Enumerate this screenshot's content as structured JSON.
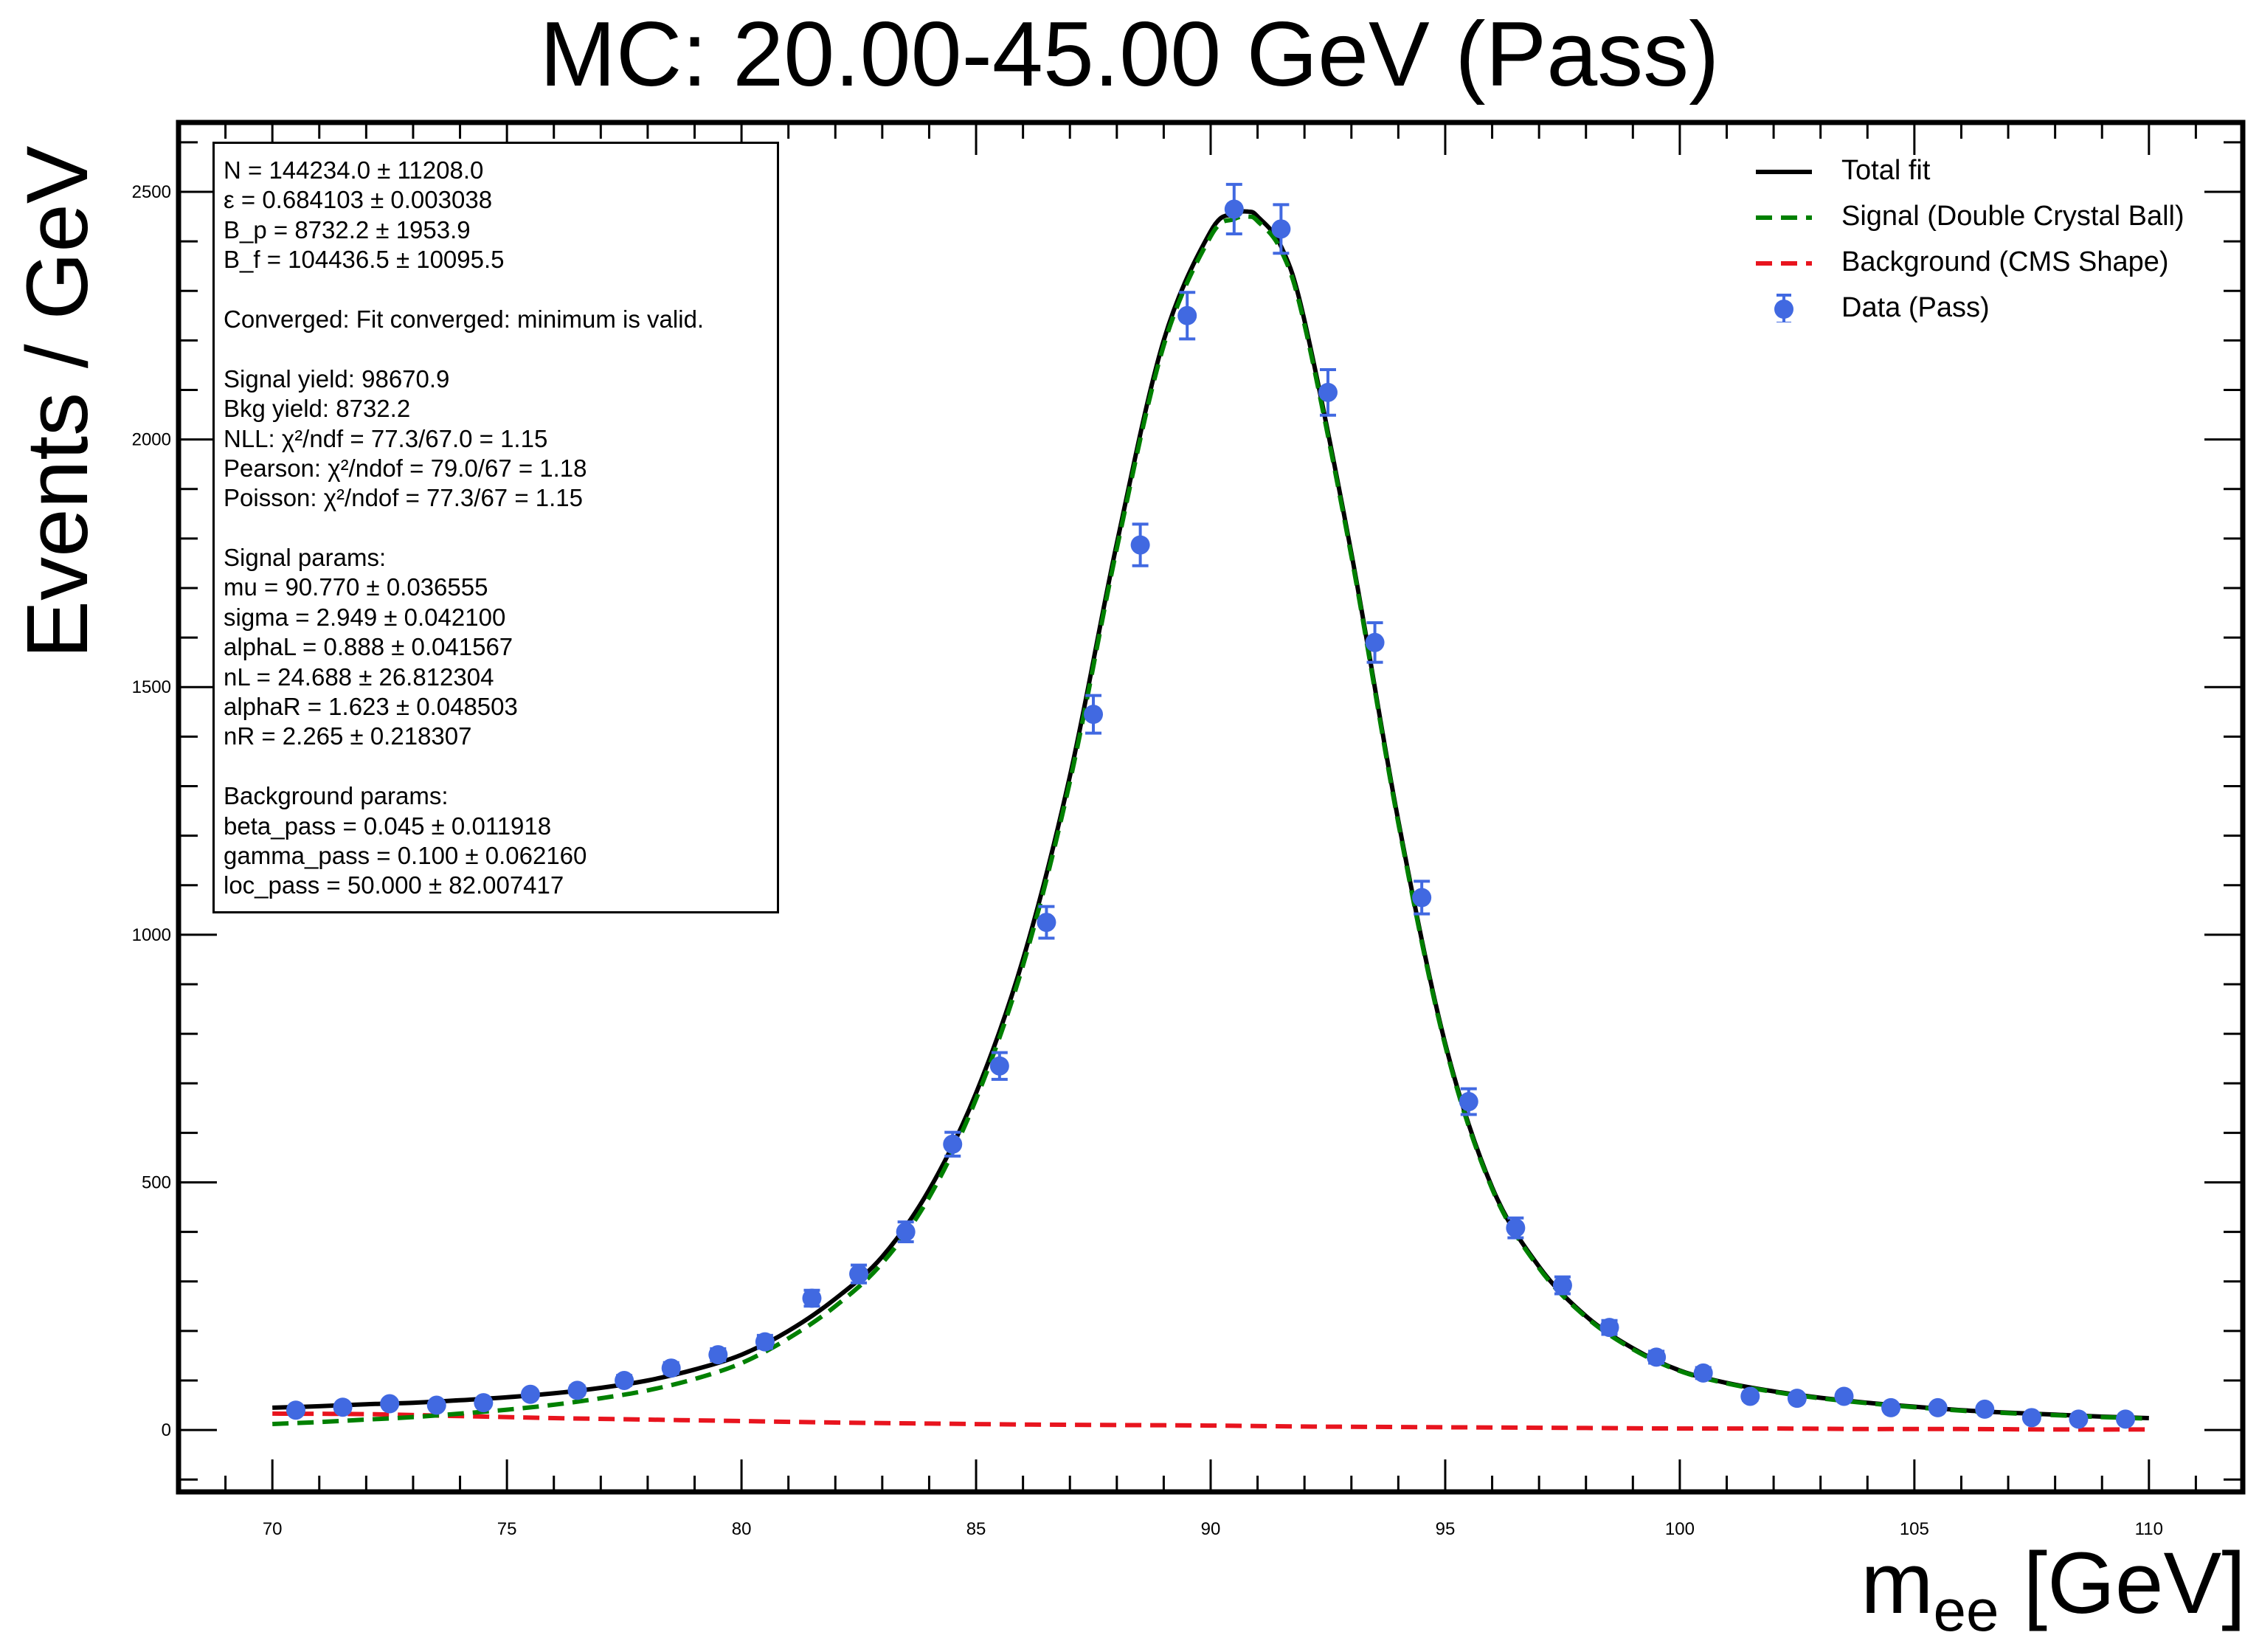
{
  "title": "MC: 20.00-45.00 GeV (Pass)",
  "ylabel": "Events / GeV",
  "xlabel_main": "m",
  "xlabel_sub": "ee",
  "xlabel_unit": " [GeV]",
  "stats_lines": [
    "N = 144234.0 ± 11208.0",
    "ε = 0.684103 ± 0.003038",
    "B_p = 8732.2 ± 1953.9",
    "B_f = 104436.5 ± 10095.5",
    "",
    "Converged: Fit converged: minimum is valid.",
    "",
    "Signal yield: 98670.9",
    "Bkg yield: 8732.2",
    "NLL: χ²/ndf = 77.3/67.0 = 1.15",
    "Pearson: χ²/ndof = 79.0/67 = 1.18",
    "Poisson: χ²/ndof = 77.3/67 = 1.15",
    "",
    "Signal params:",
    "mu = 90.770 ± 0.036555",
    "sigma = 2.949 ± 0.042100",
    "alphaL = 0.888 ± 0.041567",
    "nL = 24.688 ± 26.812304",
    "alphaR = 1.623 ± 0.048503",
    "nR = 2.265 ± 0.218307",
    "",
    "Background params:",
    "beta_pass = 0.045 ± 0.011918",
    "gamma_pass = 0.100 ± 0.062160",
    "loc_pass = 50.000 ± 82.007417"
  ],
  "legend": [
    {
      "label": "Total fit",
      "style": "solid",
      "color": "#000000"
    },
    {
      "label": "Signal (Double Crystal Ball)",
      "style": "dashed",
      "color": "#008000"
    },
    {
      "label": "Background (CMS Shape)",
      "style": "dashed",
      "color": "#e8141e"
    },
    {
      "label": "Data (Pass)",
      "style": "errorbar",
      "color": "#4169e1"
    }
  ],
  "chart_data": {
    "type": "scatter",
    "title": "MC: 20.00-45.00 GeV (Pass)",
    "xlabel": "m_ee [GeV]",
    "ylabel": "Events / GeV",
    "xlim": [
      68,
      112
    ],
    "ylim": [
      -125,
      2640
    ],
    "xticks": [
      70,
      75,
      80,
      85,
      90,
      95,
      100,
      105,
      110
    ],
    "yticks": [
      0,
      500,
      1000,
      1500,
      2000,
      2500
    ],
    "grid": false,
    "legend_position": "top-right",
    "series": [
      {
        "name": "Data (Pass)",
        "color": "#4169e1",
        "x": [
          70.5,
          71.5,
          72.5,
          73.5,
          74.5,
          75.5,
          76.5,
          77.5,
          78.5,
          79.5,
          80.5,
          81.5,
          82.5,
          83.5,
          84.5,
          85.5,
          86.5,
          87.5,
          88.5,
          89.5,
          90.5,
          91.5,
          92.5,
          93.5,
          94.5,
          95.5,
          96.5,
          97.5,
          98.5,
          99.5,
          100.5,
          101.5,
          102.5,
          103.5,
          104.5,
          105.5,
          106.5,
          107.5,
          108.5,
          109.5
        ],
        "y": [
          40,
          46,
          53,
          50,
          55,
          72,
          80,
          100,
          125,
          152,
          178,
          266,
          315,
          400,
          577,
          735,
          1025,
          1445,
          1787,
          2250,
          2465,
          2425,
          2095,
          1590,
          1075,
          663,
          408,
          292,
          207,
          147,
          115,
          68,
          64,
          68,
          45,
          45,
          42,
          25,
          22,
          22
        ],
        "yerr": [
          6,
          7,
          7,
          7,
          7,
          8,
          9,
          10,
          11,
          12,
          13,
          16,
          18,
          20,
          24,
          27,
          32,
          38,
          42,
          47,
          50,
          49,
          46,
          40,
          33,
          26,
          20,
          17,
          14,
          12,
          11,
          8,
          8,
          8,
          7,
          7,
          6,
          5,
          5,
          5
        ]
      },
      {
        "name": "Total fit",
        "color": "#000000",
        "x": [
          70,
          71,
          72,
          73,
          74,
          75,
          76,
          77,
          78,
          79,
          80,
          81,
          82,
          83,
          84,
          85,
          86,
          87,
          88,
          89,
          90,
          90.5,
          90.8,
          91,
          91.5,
          92,
          93,
          94,
          95,
          96,
          97,
          98,
          99,
          100,
          101,
          102,
          103,
          104,
          105,
          106,
          107,
          108,
          109,
          110
        ],
        "y": [
          45,
          48,
          52,
          55,
          60,
          66,
          74,
          85,
          100,
          122,
          152,
          200,
          265,
          350,
          485,
          680,
          950,
          1320,
          1790,
          2200,
          2420,
          2455,
          2460,
          2450,
          2390,
          2240,
          1770,
          1230,
          780,
          490,
          330,
          230,
          165,
          120,
          95,
          78,
          65,
          55,
          47,
          40,
          35,
          31,
          27,
          24
        ]
      },
      {
        "name": "Signal (Double Crystal Ball)",
        "color": "#008000",
        "x": [
          70,
          71,
          72,
          73,
          74,
          75,
          76,
          77,
          78,
          79,
          80,
          81,
          82,
          83,
          84,
          85,
          86,
          87,
          88,
          89,
          90,
          90.5,
          90.8,
          91,
          91.5,
          92,
          93,
          94,
          95,
          96,
          97,
          98,
          99,
          100,
          101,
          102,
          103,
          104,
          105,
          106,
          107,
          108,
          109,
          110
        ],
        "y": [
          12,
          16,
          21,
          26,
          33,
          41,
          51,
          64,
          80,
          103,
          135,
          185,
          250,
          337,
          470,
          668,
          938,
          1309,
          1780,
          2190,
          2410,
          2445,
          2450,
          2441,
          2382,
          2232,
          1764,
          1225,
          776,
          487,
          327,
          228,
          163,
          119,
          94,
          77,
          64,
          54,
          46,
          39,
          34,
          30,
          26,
          23
        ]
      },
      {
        "name": "Background (CMS Shape)",
        "color": "#e8141e",
        "x": [
          70,
          72,
          74,
          76,
          78,
          80,
          82,
          84,
          86,
          88,
          90,
          92,
          94,
          96,
          98,
          100,
          102,
          104,
          106,
          108,
          110
        ],
        "y": [
          33,
          32,
          28,
          24,
          21,
          18,
          15,
          13,
          11,
          10,
          9,
          7,
          6,
          5,
          4,
          3,
          3,
          2,
          2,
          1,
          1
        ]
      }
    ]
  }
}
